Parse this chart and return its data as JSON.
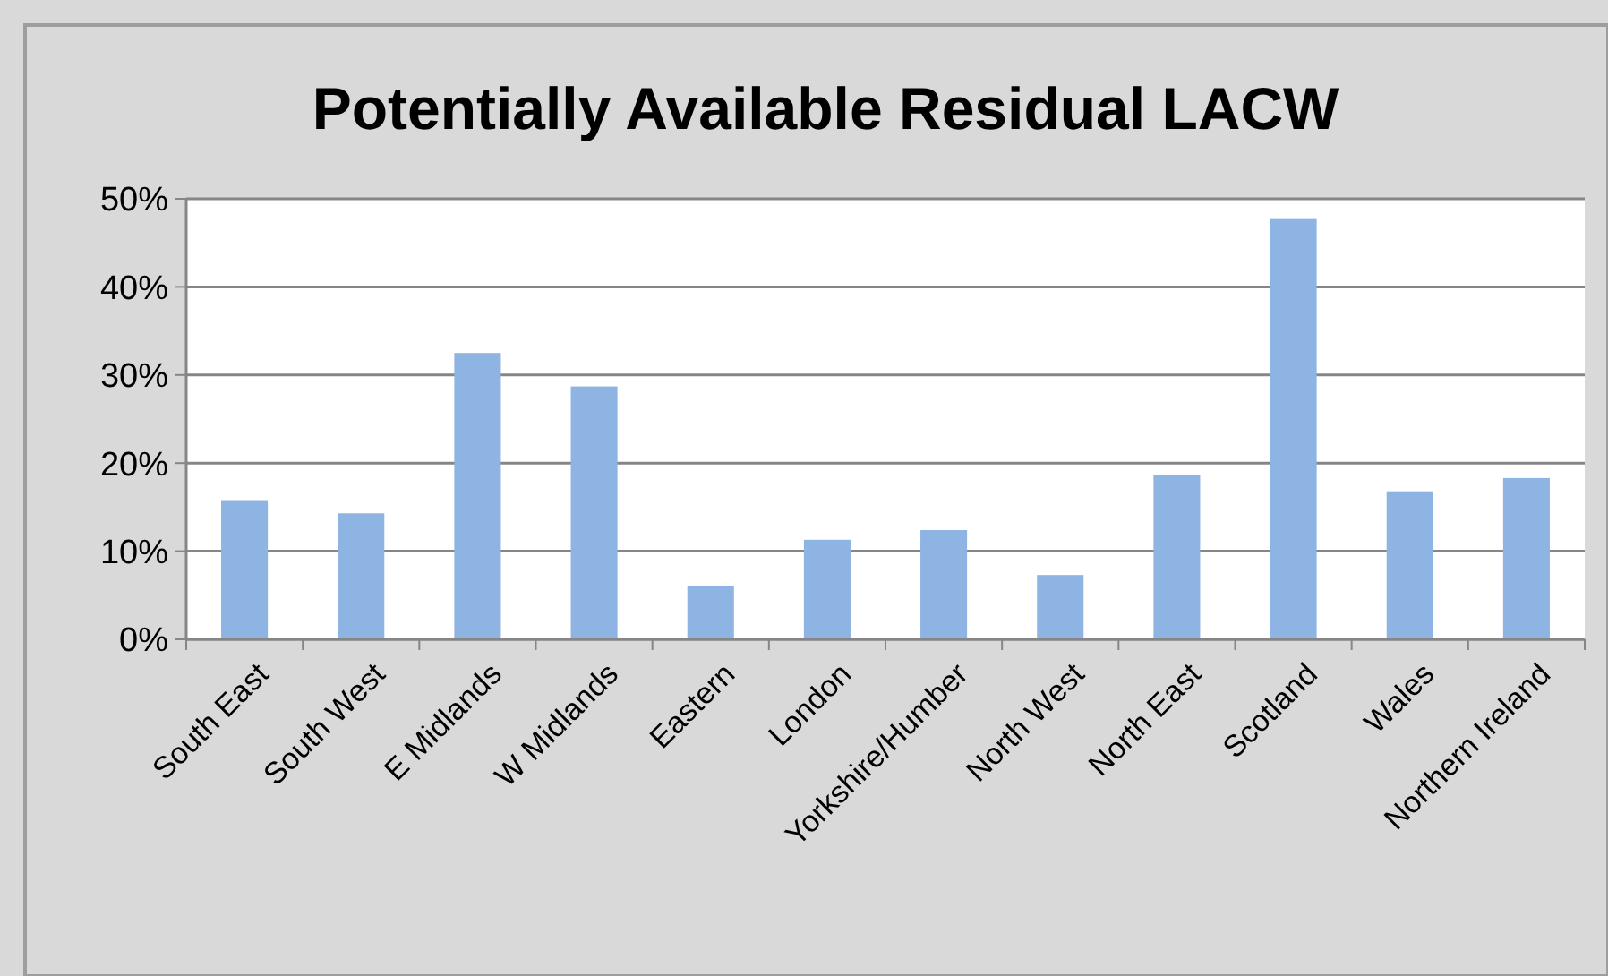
{
  "chart_data": {
    "type": "bar",
    "title": "Potentially Available Residual LACW",
    "categories": [
      "South East",
      "South West",
      "E Midlands",
      "W Midlands",
      "Eastern",
      "London",
      "Yorkshire/Humber",
      "North West",
      "North East",
      "Scotland",
      "Wales",
      "Northern Ireland"
    ],
    "values": [
      15.8,
      14.3,
      32.5,
      28.7,
      6.1,
      11.3,
      12.4,
      7.3,
      18.7,
      47.7,
      16.8,
      18.3
    ],
    "color": "#8eb4e3",
    "ylim": [
      0,
      50
    ],
    "yticks": [
      {
        "value": 0,
        "label": "0%"
      },
      {
        "value": 10,
        "label": "10%"
      },
      {
        "value": 20,
        "label": "20%"
      },
      {
        "value": 30,
        "label": "30%"
      },
      {
        "value": 40,
        "label": "40%"
      },
      {
        "value": 50,
        "label": "50%"
      }
    ],
    "grid": "y"
  }
}
